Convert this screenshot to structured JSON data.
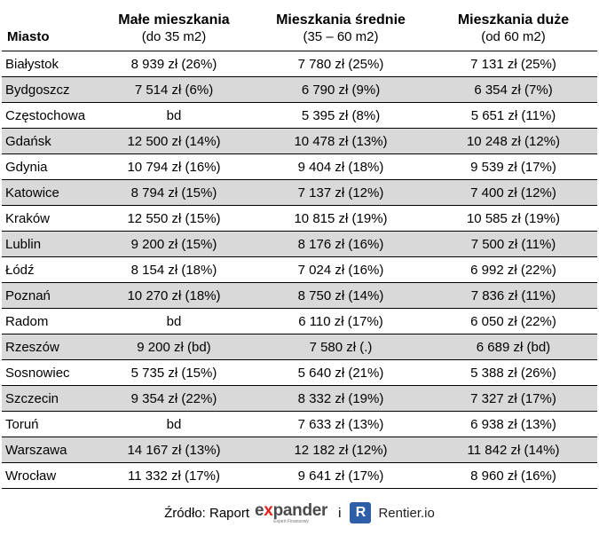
{
  "table": {
    "headers": {
      "city": "Miasto",
      "small_title": "Małe mieszkania",
      "small_sub": "(do 35 m2)",
      "medium_title": "Mieszkania średnie",
      "medium_sub": "(35 – 60 m2)",
      "large_title": "Mieszkania duże",
      "large_sub": "(od 60 m2)"
    },
    "rows": [
      [
        "Białystok",
        "8 939 zł (26%)",
        "7 780 zł (25%)",
        "7 131 zł (25%)"
      ],
      [
        "Bydgoszcz",
        "7 514 zł (6%)",
        "6 790 zł (9%)",
        "6 354 zł (7%)"
      ],
      [
        "Częstochowa",
        "bd",
        "5 395 zł (8%)",
        "5 651 zł (11%)"
      ],
      [
        "Gdańsk",
        "12 500 zł (14%)",
        "10 478 zł (13%)",
        "10 248 zł (12%)"
      ],
      [
        "Gdynia",
        "10 794 zł (16%)",
        "9 404 zł (18%)",
        "9 539 zł (17%)"
      ],
      [
        "Katowice",
        "8 794 zł (15%)",
        "7 137 zł (12%)",
        "7 400 zł (12%)"
      ],
      [
        "Kraków",
        "12 550 zł (15%)",
        "10 815 zł (19%)",
        "10 585 zł (19%)"
      ],
      [
        "Lublin",
        "9 200 zł (15%)",
        "8 176 zł (16%)",
        "7 500 zł (11%)"
      ],
      [
        "Łódź",
        "8 154 zł (18%)",
        "7 024 zł (16%)",
        "6 992 zł (22%)"
      ],
      [
        "Poznań",
        "10 270 zł (18%)",
        "8 750 zł (14%)",
        "7 836 zł (11%)"
      ],
      [
        "Radom",
        "bd",
        "6 110 zł (17%)",
        "6 050 zł (22%)"
      ],
      [
        "Rzeszów",
        "9 200 zł (bd)",
        "7 580 zł (.)",
        "6 689 zł (bd)"
      ],
      [
        "Sosnowiec",
        "5 735 zł (15%)",
        "5 640 zł (21%)",
        "5 388 zł (26%)"
      ],
      [
        "Szczecin",
        "9 354 zł (22%)",
        "8 332 zł (19%)",
        "7 327 zł (17%)"
      ],
      [
        "Toruń",
        "bd",
        "7 633 zł (13%)",
        "6 938 zł (13%)"
      ],
      [
        "Warszawa",
        "14 167 zł (13%)",
        "12 182 zł (12%)",
        "11 842 zł (14%)"
      ],
      [
        "Wrocław",
        "11 332 zł (17%)",
        "9 641 zł (17%)",
        "8 960 zł (16%)"
      ]
    ],
    "shade_color": "#d9d9d9"
  },
  "footer": {
    "source_label": "Źródło: Raport",
    "expander_logo": {
      "prefix": "e",
      "x": "x",
      "suffix": "pander",
      "tagline": "Expert Finansowy"
    },
    "conjunction": "i",
    "rentier_icon": "R",
    "rentier_name": "Rentier.io",
    "expander_accent": "#e2231a",
    "rentier_color": "#2f5ea8"
  }
}
